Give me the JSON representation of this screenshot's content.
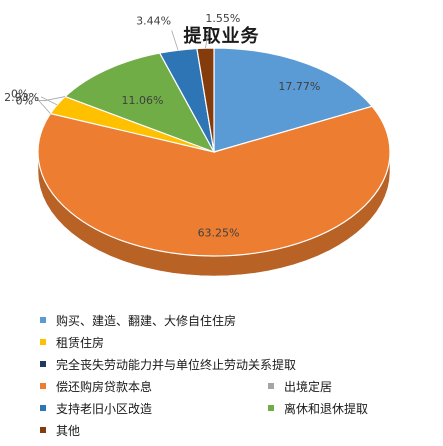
{
  "chart_data": {
    "type": "pie",
    "title": "提取业务",
    "slices": [
      {
        "label": "购买、建造、翻建、大修自住住房",
        "value": 17.77,
        "value_label": "17.77%",
        "color": "#5b9bd5"
      },
      {
        "label": "偿还购房贷款本息",
        "value": 63.25,
        "value_label": "63.25%",
        "color": "#ed7d31"
      },
      {
        "label": "完全丧失劳动能力并与单位终止劳动关系提取",
        "value": 0.0,
        "value_label": "0%",
        "color": "#1f3864"
      },
      {
        "label": "租赁住房",
        "value": 2.93,
        "value_label": "2.93%",
        "color": "#ffc000"
      },
      {
        "label": "出境定居",
        "value": 0.0,
        "value_label": "0%",
        "color": "#a5a5a5"
      },
      {
        "label": "离休和退休提取",
        "value": 11.06,
        "value_label": "11.06%",
        "color": "#70ad47"
      },
      {
        "label": "支持老旧小区改造",
        "value": 3.44,
        "value_label": "3.44%",
        "color": "#2e75b6"
      },
      {
        "label": "其他",
        "value": 1.55,
        "value_label": "1.55%",
        "color": "#843c0c"
      }
    ],
    "legend_position": "bottom"
  },
  "legend_layout": [
    [
      "购买、建造、翻建、大修自住住房"
    ],
    [
      "租赁住房"
    ],
    [
      "完全丧失劳动能力并与单位终止劳动关系提取"
    ],
    [
      "偿还购房贷款本息",
      "出境定居"
    ],
    [
      "支持老旧小区改造",
      "离休和退休提取"
    ],
    [
      "其他"
    ]
  ]
}
